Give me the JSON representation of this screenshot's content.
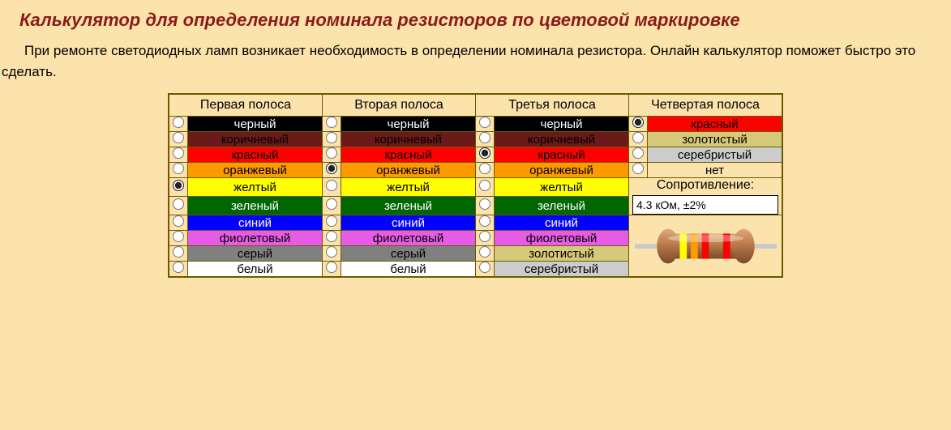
{
  "title": "Калькулятор для определения номинала резисторов по цветовой маркировке",
  "intro": "При ремонте светодиодных ламп возникает необходимость в определении номинала резистора. Онлайн калькулятор поможет быстро это сделать.",
  "table": {
    "headers": [
      "Первая полоса",
      "Вторая полоса",
      "Третья полоса",
      "Четвертая полоса"
    ],
    "colors": {
      "black": {
        "label": "черный",
        "bg": "#000000",
        "fg": "#ffffff"
      },
      "brown": {
        "label": "коричневый",
        "bg": "#6b1a1a",
        "fg": "#000000"
      },
      "red": {
        "label": "красный",
        "bg": "#ff0000",
        "fg": "#000000"
      },
      "orange": {
        "label": "оранжевый",
        "bg": "#ff9900",
        "fg": "#000000"
      },
      "yellow": {
        "label": "желтый",
        "bg": "#ffff00",
        "fg": "#000000"
      },
      "green": {
        "label": "зеленый",
        "bg": "#006600",
        "fg": "#ffffff"
      },
      "blue": {
        "label": "синий",
        "bg": "#0000ff",
        "fg": "#ffffff"
      },
      "violet": {
        "label": "фиолетовый",
        "bg": "#e65ce6",
        "fg": "#000000"
      },
      "grey": {
        "label": "серый",
        "bg": "#808080",
        "fg": "#000000"
      },
      "white": {
        "label": "белый",
        "bg": "#ffffff",
        "fg": "#000000"
      },
      "gold": {
        "label": "золотистый",
        "bg": "#d6c97a",
        "fg": "#000000"
      },
      "silver": {
        "label": "серебристый",
        "bg": "#cccccc",
        "fg": "#000000"
      },
      "none": {
        "label": "нет",
        "bg": "#fce3ac",
        "fg": "#000000"
      }
    },
    "columns": [
      [
        "black",
        "brown",
        "red",
        "orange",
        "yellow",
        "green",
        "blue",
        "violet",
        "grey",
        "white"
      ],
      [
        "black",
        "brown",
        "red",
        "orange",
        "yellow",
        "green",
        "blue",
        "violet",
        "grey",
        "white"
      ],
      [
        "black",
        "brown",
        "red",
        "orange",
        "yellow",
        "green",
        "blue",
        "violet",
        "gold",
        "silver"
      ],
      [
        "red",
        "gold",
        "silver",
        "none"
      ]
    ],
    "selected": [
      "yellow",
      "orange",
      "red",
      "red"
    ]
  },
  "result": {
    "label": "Сопротивление:",
    "value": "4.3 кОм,  ±2%"
  },
  "resistor": {
    "body_color": "#b97a4a",
    "body_highlight": "#e0a97a",
    "lead_color": "#c9c9c9",
    "bands": [
      "#ffff00",
      "#ff9900",
      "#ff0000",
      "#ff0000"
    ]
  }
}
